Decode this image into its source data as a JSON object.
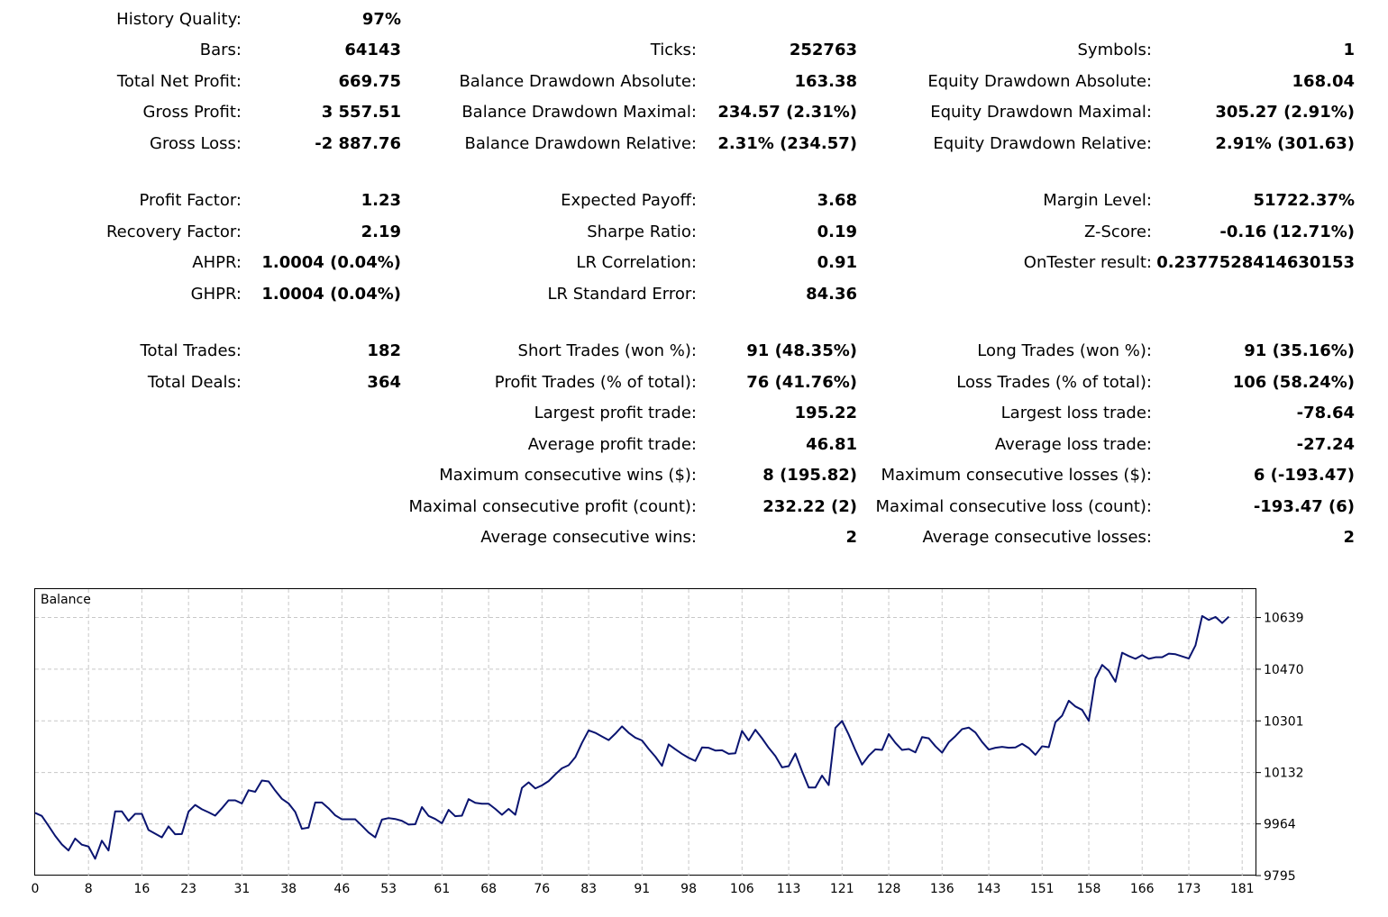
{
  "report": {
    "history_quality": {
      "label": "History Quality:",
      "value": "97%"
    },
    "rows": [
      [
        {
          "label": "Bars:",
          "value": "64143"
        },
        {
          "label": "Ticks:",
          "value": "252763"
        },
        {
          "label": "Symbols:",
          "value": "1"
        }
      ],
      [
        {
          "label": "Total Net Profit:",
          "value": "669.75"
        },
        {
          "label": "Balance Drawdown Absolute:",
          "value": "163.38"
        },
        {
          "label": "Equity Drawdown Absolute:",
          "value": "168.04"
        }
      ],
      [
        {
          "label": "Gross Profit:",
          "value": "3 557.51"
        },
        {
          "label": "Balance Drawdown Maximal:",
          "value": "234.57 (2.31%)"
        },
        {
          "label": "Equity Drawdown Maximal:",
          "value": "305.27 (2.91%)"
        }
      ],
      [
        {
          "label": "Gross Loss:",
          "value": "-2 887.76"
        },
        {
          "label": "Balance Drawdown Relative:",
          "value": "2.31% (234.57)"
        },
        {
          "label": "Equity Drawdown Relative:",
          "value": "2.91% (301.63)"
        }
      ],
      [
        {
          "label": "Profit Factor:",
          "value": "1.23"
        },
        {
          "label": "Expected Payoff:",
          "value": "3.68"
        },
        {
          "label": "Margin Level:",
          "value": "51722.37%"
        }
      ],
      [
        {
          "label": "Recovery Factor:",
          "value": "2.19"
        },
        {
          "label": "Sharpe Ratio:",
          "value": "0.19"
        },
        {
          "label": "Z-Score:",
          "value": "-0.16 (12.71%)"
        }
      ],
      [
        {
          "label": "AHPR:",
          "value": "1.0004 (0.04%)"
        },
        {
          "label": "LR Correlation:",
          "value": "0.91"
        },
        {
          "label": "OnTester result:",
          "value": "0.2377528414630153"
        }
      ],
      [
        {
          "label": "GHPR:",
          "value": "1.0004 (0.04%)"
        },
        {
          "label": "LR Standard Error:",
          "value": "84.36"
        },
        null
      ],
      [
        {
          "label": "Total Trades:",
          "value": "182"
        },
        {
          "label": "Short Trades (won %):",
          "value": "91 (48.35%)"
        },
        {
          "label": "Long Trades (won %):",
          "value": "91 (35.16%)"
        }
      ],
      [
        {
          "label": "Total Deals:",
          "value": "364"
        },
        {
          "label": "Profit Trades (% of total):",
          "value": "76 (41.76%)"
        },
        {
          "label": "Loss Trades (% of total):",
          "value": "106 (58.24%)"
        }
      ],
      [
        null,
        {
          "label": "Largest profit trade:",
          "value": "195.22"
        },
        {
          "label": "Largest loss trade:",
          "value": "-78.64"
        }
      ],
      [
        null,
        {
          "label": "Average profit trade:",
          "value": "46.81"
        },
        {
          "label": "Average loss trade:",
          "value": "-27.24"
        }
      ],
      [
        null,
        {
          "label": "Maximum consecutive wins ($):",
          "value": "8 (195.82)"
        },
        {
          "label": "Maximum consecutive losses ($):",
          "value": "6 (-193.47)"
        }
      ],
      [
        null,
        {
          "label": "Maximal consecutive profit (count):",
          "value": "232.22 (2)"
        },
        {
          "label": "Maximal consecutive loss (count):",
          "value": "-193.47 (6)"
        }
      ],
      [
        null,
        {
          "label": "Average consecutive wins:",
          "value": "2"
        },
        {
          "label": "Average consecutive losses:",
          "value": "2"
        }
      ]
    ]
  },
  "chart_data": {
    "type": "line",
    "title": "Balance",
    "xlabel": "",
    "ylabel": "",
    "xlim": [
      0,
      183
    ],
    "ylim": [
      9795,
      10732
    ],
    "x_ticks": [
      "0",
      "8",
      "16",
      "23",
      "31",
      "38",
      "46",
      "53",
      "61",
      "68",
      "76",
      "83",
      "91",
      "98",
      "106",
      "113",
      "121",
      "128",
      "136",
      "143",
      "151",
      "158",
      "166",
      "173",
      "181"
    ],
    "y_ticks": [
      "10639",
      "10470",
      "10301",
      "10132",
      "9964",
      "9795"
    ],
    "grid": true,
    "colors": {
      "line": "#0a1470",
      "grid": "#c8c8c8",
      "frame": "#000000"
    },
    "series": [
      {
        "values": [
          10000,
          9990,
          9958,
          9925,
          9897,
          9877,
          9916,
          9896,
          9890,
          9850,
          9909,
          9877,
          10005,
          10005,
          9974,
          9997,
          9997,
          9944,
          9932,
          9920,
          9956,
          9930,
          9931,
          10004,
          10026,
          10012,
          10002,
          9991,
          10015,
          10041,
          10041,
          10031,
          10074,
          10069,
          10106,
          10103,
          10073,
          10046,
          10031,
          10003,
          9948,
          9952,
          10034,
          10034,
          10015,
          9992,
          9979,
          9979,
          9979,
          9958,
          9936,
          9920,
          9978,
          9983,
          9980,
          9974,
          9962,
          9963,
          10019,
          9990,
          9980,
          9966,
          10010,
          9989,
          9991,
          10045,
          10033,
          10030,
          10030,
          10013,
          9994,
          10013,
          9994,
          10082,
          10100,
          10080,
          10090,
          10104,
          10126,
          10146,
          10156,
          10182,
          10229,
          10270,
          10262,
          10250,
          10238,
          10259,
          10283,
          10262,
          10246,
          10237,
          10209,
          10184,
          10154,
          10224,
          10208,
          10193,
          10180,
          10170,
          10214,
          10213,
          10204,
          10205,
          10193,
          10195,
          10268,
          10237,
          10272,
          10244,
          10213,
          10186,
          10149,
          10153,
          10194,
          10136,
          10083,
          10083,
          10122,
          10091,
          10278,
          10301,
          10256,
          10205,
          10158,
          10187,
          10208,
          10206,
          10258,
          10229,
          10206,
          10209,
          10198,
          10248,
          10244,
          10218,
          10197,
          10231,
          10251,
          10274,
          10279,
          10263,
          10232,
          10207,
          10213,
          10216,
          10213,
          10214,
          10226,
          10212,
          10190,
          10218,
          10215,
          10297,
          10318,
          10367,
          10348,
          10337,
          10301,
          10440,
          10484,
          10465,
          10429,
          10524,
          10513,
          10504,
          10516,
          10504,
          10509,
          10509,
          10521,
          10519,
          10512,
          10505,
          10548,
          10644,
          10631,
          10641,
          10621,
          10642
        ]
      }
    ]
  }
}
